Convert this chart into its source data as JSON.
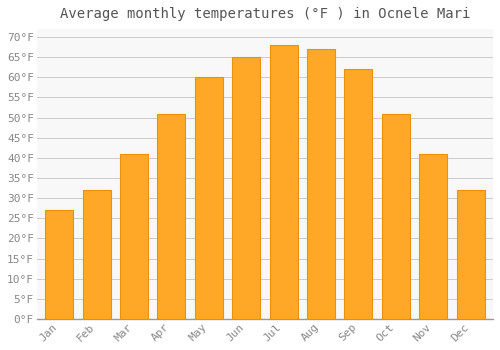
{
  "title": "Average monthly temperatures (°F ) in Ocnele Mari",
  "months": [
    "Jan",
    "Feb",
    "Mar",
    "Apr",
    "May",
    "Jun",
    "Jul",
    "Aug",
    "Sep",
    "Oct",
    "Nov",
    "Dec"
  ],
  "values": [
    27,
    32,
    41,
    51,
    60,
    65,
    68,
    67,
    62,
    51,
    41,
    32
  ],
  "bar_color_main": "#FFA726",
  "bar_color_edge": "#E8930A",
  "background_color": "#FFFFFF",
  "plot_bg_color": "#F8F8F8",
  "grid_color": "#CCCCCC",
  "ylim": [
    0,
    72
  ],
  "yticks": [
    0,
    5,
    10,
    15,
    20,
    25,
    30,
    35,
    40,
    45,
    50,
    55,
    60,
    65,
    70
  ],
  "title_fontsize": 10,
  "tick_fontsize": 8,
  "font_family": "monospace",
  "tick_color": "#888888",
  "bar_width": 0.75
}
